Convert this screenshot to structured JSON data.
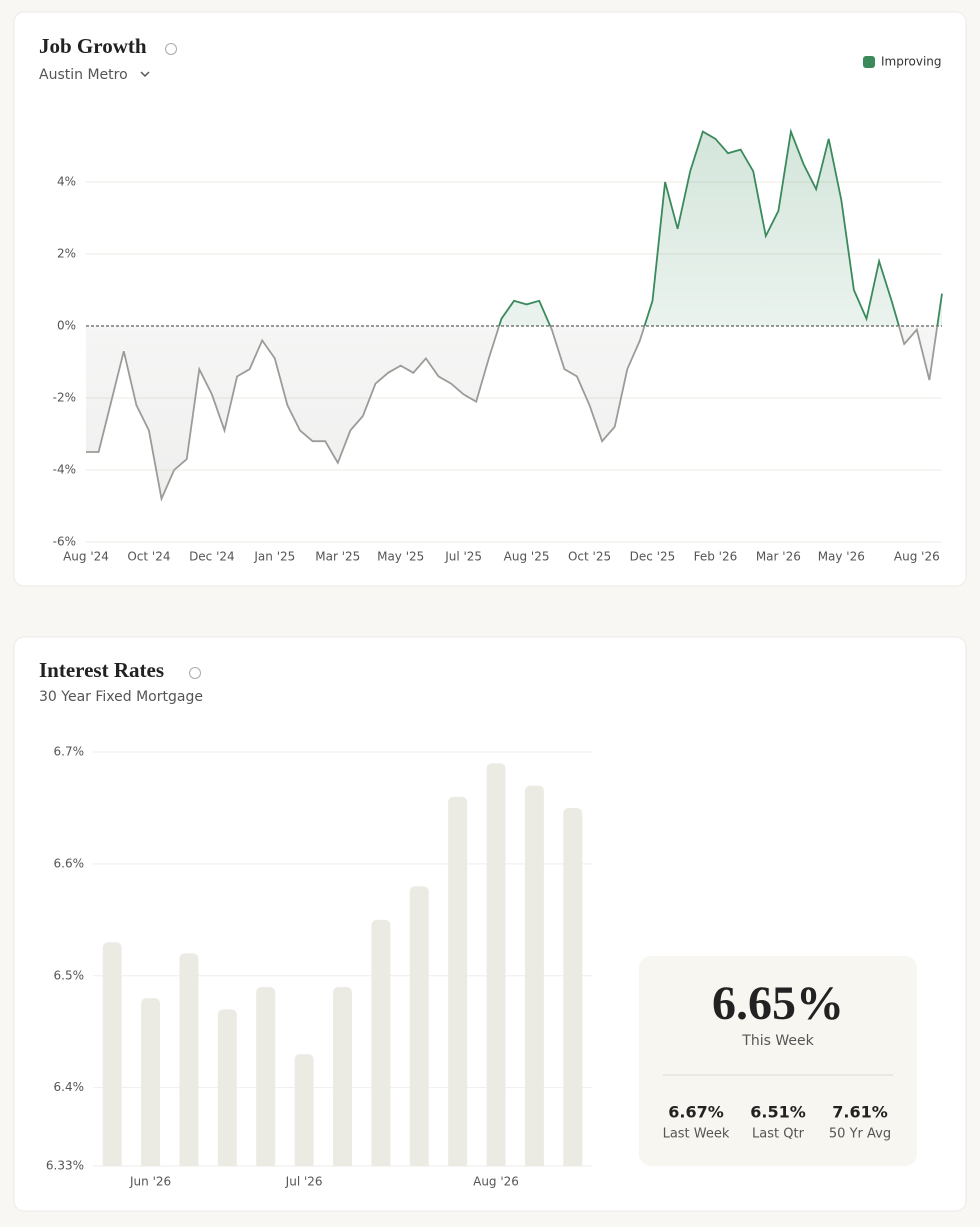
{
  "chart_data": [
    {
      "type": "line",
      "title": "Job Growth",
      "subtitle": "Austin Metro",
      "x": [
        0,
        0.2,
        0.4,
        0.6,
        0.8,
        1.0,
        1.2,
        1.4,
        1.6,
        1.8,
        2.0,
        2.2,
        2.4,
        2.6,
        2.8,
        3.0,
        3.2,
        3.4,
        3.6,
        3.8,
        4.0,
        4.2,
        4.4,
        4.6,
        4.8,
        5.0,
        5.2,
        5.4,
        5.6,
        5.8,
        6.0,
        6.2,
        6.4,
        6.6,
        6.8,
        7.0,
        7.2,
        7.4,
        7.6,
        7.8,
        8.0,
        8.2,
        8.4,
        8.6,
        8.8,
        9.0,
        9.2,
        9.4,
        9.6,
        9.8,
        10.0,
        10.2,
        10.4,
        10.6,
        10.8,
        11.0,
        11.2,
        11.4,
        11.6,
        11.8,
        12.0,
        12.2,
        12.4,
        12.6,
        12.8,
        13.0,
        13.2,
        13.4,
        13.6
      ],
      "series": [
        {
          "name": "Improving",
          "color": "#3a8a5c",
          "negative_color": "#9b9b97",
          "values": [
            -3.5,
            -3.5,
            -2.1,
            -0.7,
            -2.2,
            -2.9,
            -4.8,
            -4.0,
            -3.7,
            -1.2,
            -1.9,
            -2.9,
            -1.4,
            -1.2,
            -0.4,
            -0.9,
            -2.2,
            -2.9,
            -3.2,
            -3.2,
            -3.8,
            -2.9,
            -2.5,
            -1.6,
            -1.3,
            -1.1,
            -1.3,
            -0.9,
            -1.4,
            -1.6,
            -1.9,
            -2.1,
            -0.9,
            0.2,
            0.7,
            0.6,
            0.7,
            -0.1,
            -1.2,
            -1.4,
            -2.2,
            -3.2,
            -2.8,
            -1.2,
            -0.4,
            0.7,
            4.0,
            2.7,
            4.3,
            5.4,
            5.2,
            4.8,
            4.9,
            4.3,
            2.5,
            3.2,
            5.4,
            4.5,
            3.8,
            5.2,
            3.5,
            1.0,
            0.2,
            1.8,
            0.7,
            -0.5,
            -0.1,
            -1.5,
            0.9
          ]
        }
      ],
      "xlim": [
        0,
        13.6
      ],
      "xticks": [
        {
          "value": 0,
          "label": "Aug '24"
        },
        {
          "value": 1,
          "label": "Oct '24"
        },
        {
          "value": 2,
          "label": "Dec '24"
        },
        {
          "value": 3,
          "label": "Jan '25"
        },
        {
          "value": 4,
          "label": "Mar '25"
        },
        {
          "value": 5,
          "label": "May '25"
        },
        {
          "value": 6,
          "label": "Jul '25"
        },
        {
          "value": 7,
          "label": "Aug '25"
        },
        {
          "value": 8,
          "label": "Oct '25"
        },
        {
          "value": 9,
          "label": "Dec '25"
        },
        {
          "value": 10,
          "label": "Feb '26"
        },
        {
          "value": 11,
          "label": "Mar '26"
        },
        {
          "value": 12,
          "label": "May '26"
        },
        {
          "value": 13.2,
          "label": "Aug '26"
        }
      ],
      "ylim": [
        -6,
        6
      ],
      "yticks": [
        {
          "value": -6,
          "label": "-6%"
        },
        {
          "value": -4,
          "label": "-4%"
        },
        {
          "value": -2,
          "label": "-2%"
        },
        {
          "value": 0,
          "label": "0%"
        },
        {
          "value": 2,
          "label": "2%"
        },
        {
          "value": 4,
          "label": "4%"
        }
      ],
      "grid": true,
      "legend": "top-right"
    },
    {
      "type": "bar",
      "title": "Interest Rates",
      "subtitle": "30 Year Fixed Mortgage",
      "categories": [
        null,
        "Jun '26",
        null,
        null,
        null,
        "Jul '26",
        null,
        null,
        null,
        null,
        "Aug '26",
        null,
        null
      ],
      "values": [
        6.53,
        6.48,
        6.52,
        6.47,
        6.49,
        6.43,
        6.49,
        6.55,
        6.58,
        6.66,
        6.69,
        6.67,
        6.65
      ],
      "color": "#ecebe3",
      "ylim": [
        6.33,
        6.7
      ],
      "yticks": [
        {
          "value": 6.33,
          "label": "6.33%"
        },
        {
          "value": 6.4,
          "label": "6.4%"
        },
        {
          "value": 6.5,
          "label": "6.5%"
        },
        {
          "value": 6.6,
          "label": "6.6%"
        },
        {
          "value": 6.7,
          "label": "6.7%"
        }
      ],
      "grid": true
    }
  ],
  "summary": {
    "current": {
      "value": "6.65%",
      "label": "This Week"
    },
    "stats": [
      {
        "value": "6.67%",
        "label": "Last Week"
      },
      {
        "value": "6.51%",
        "label": "Last Qtr"
      },
      {
        "value": "7.61%",
        "label": "50 Yr Avg"
      }
    ]
  }
}
